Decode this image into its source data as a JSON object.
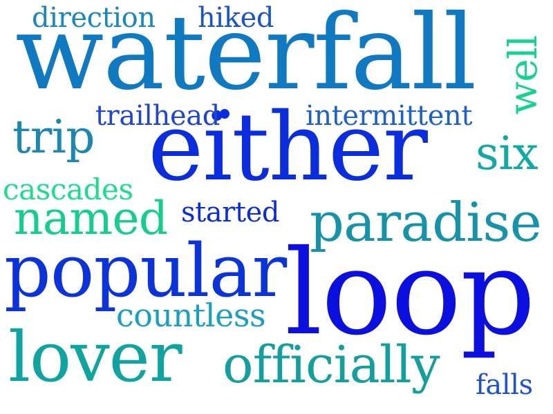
{
  "colors": {
    "background": "#ffffff",
    "deep_blue": "#0b2de0",
    "blue": "#1f4fd0",
    "steel_blue": "#1a73c2",
    "teal": "#1894a8",
    "sea_green": "#11a59a",
    "mint": "#1fd48c"
  },
  "words": [
    {
      "text": "waterfall",
      "color": "#0f79c2"
    },
    {
      "text": "either",
      "color": "#0b2de0"
    },
    {
      "text": "loop",
      "color": "#0b10e0"
    },
    {
      "text": "popular",
      "color": "#0a33dc"
    },
    {
      "text": "lover",
      "color": "#0ea5a0"
    },
    {
      "text": "officially",
      "color": "#129f9d"
    },
    {
      "text": "paradise",
      "color": "#1593a8"
    },
    {
      "text": "named",
      "color": "#12d08a"
    },
    {
      "text": "trip",
      "color": "#1a88b0"
    },
    {
      "text": "six",
      "color": "#0eaaa3"
    },
    {
      "text": "cascades",
      "color": "#18e08a"
    },
    {
      "text": "well",
      "color": "#14d390"
    },
    {
      "text": "intermittent",
      "color": "#1c5fd0"
    },
    {
      "text": "trailhead",
      "color": "#1f44d8"
    },
    {
      "text": "direction",
      "color": "#1588c0"
    },
    {
      "text": "hiked",
      "color": "#1a52d2"
    },
    {
      "text": "started",
      "color": "#0b2bde"
    },
    {
      "text": "countless",
      "color": "#18a0c0"
    },
    {
      "text": "falls",
      "color": "#1d52d0"
    }
  ]
}
